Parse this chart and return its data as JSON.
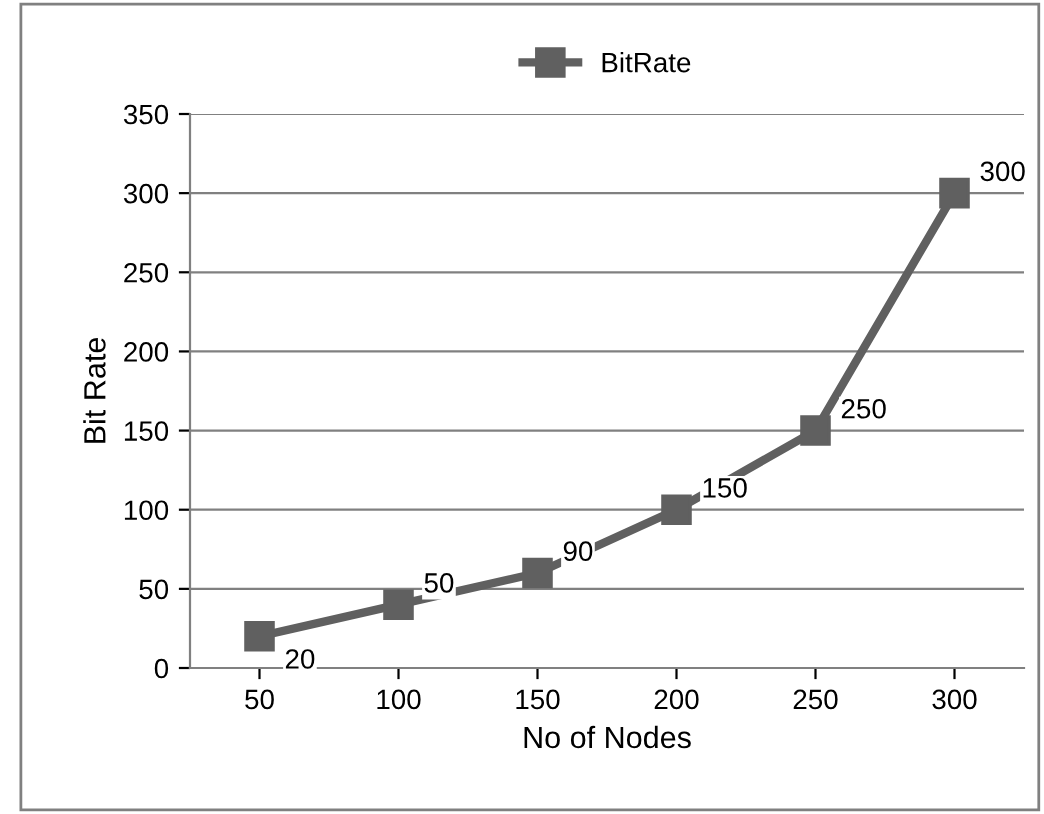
{
  "chart_data": {
    "type": "line",
    "xlabel": "No of Nodes",
    "ylabel": "Bit Rate",
    "categories": [
      "50",
      "100",
      "150",
      "200",
      "250",
      "300"
    ],
    "series": [
      {
        "name": "BitRate",
        "color": "#606060",
        "values": [
          20,
          40,
          60,
          100,
          150,
          300
        ]
      }
    ],
    "annotations": [
      "20",
      "50",
      "90",
      "150",
      "250",
      "300"
    ],
    "ylim": [
      0,
      350
    ],
    "yticks": [
      0,
      50,
      100,
      150,
      200,
      250,
      300,
      350
    ],
    "grid": "y",
    "legend": "top",
    "marker": "square"
  }
}
